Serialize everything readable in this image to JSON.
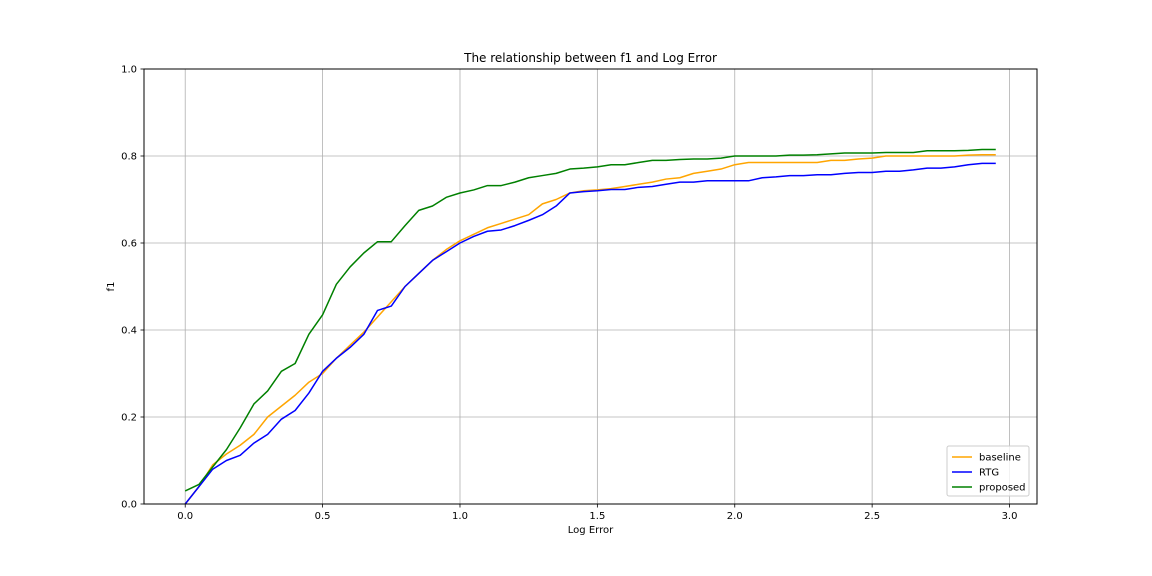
{
  "chart_data": {
    "type": "line",
    "title": "The relationship between f1 and Log Error",
    "xlabel": "Log Error",
    "ylabel": "f1",
    "xlim": [
      -0.15,
      3.1
    ],
    "ylim": [
      0.0,
      1.0
    ],
    "xticks": [
      0.0,
      0.5,
      1.0,
      1.5,
      2.0,
      2.5,
      3.0
    ],
    "xtick_labels": [
      "0.0",
      "0.5",
      "1.0",
      "1.5",
      "2.0",
      "2.5",
      "3.0"
    ],
    "yticks": [
      0.0,
      0.2,
      0.4,
      0.6,
      0.8,
      1.0
    ],
    "ytick_labels": [
      "0.0",
      "0.2",
      "0.4",
      "0.6",
      "0.8",
      "1.0"
    ],
    "grid": true,
    "legend_position": "lower-right",
    "x": [
      0.0,
      0.05,
      0.1,
      0.15,
      0.2,
      0.25,
      0.3,
      0.35,
      0.4,
      0.45,
      0.5,
      0.55,
      0.6,
      0.65,
      0.7,
      0.75,
      0.8,
      0.85,
      0.9,
      0.95,
      1.0,
      1.05,
      1.1,
      1.15,
      1.2,
      1.25,
      1.3,
      1.35,
      1.4,
      1.45,
      1.5,
      1.55,
      1.6,
      1.65,
      1.7,
      1.75,
      1.8,
      1.85,
      1.9,
      1.95,
      2.0,
      2.05,
      2.1,
      2.15,
      2.2,
      2.25,
      2.3,
      2.35,
      2.4,
      2.45,
      2.5,
      2.55,
      2.6,
      2.65,
      2.7,
      2.75,
      2.8,
      2.85,
      2.9,
      2.95
    ],
    "series": [
      {
        "name": "baseline",
        "color": "#ffa500",
        "values": [
          0.0,
          0.04,
          0.09,
          0.115,
          0.135,
          0.16,
          0.2,
          0.225,
          0.25,
          0.28,
          0.3,
          0.335,
          0.365,
          0.395,
          0.43,
          0.465,
          0.5,
          0.53,
          0.56,
          0.585,
          0.605,
          0.62,
          0.635,
          0.645,
          0.655,
          0.665,
          0.69,
          0.7,
          0.715,
          0.72,
          0.722,
          0.725,
          0.73,
          0.735,
          0.74,
          0.747,
          0.75,
          0.76,
          0.765,
          0.77,
          0.78,
          0.785,
          0.785,
          0.785,
          0.785,
          0.785,
          0.785,
          0.79,
          0.79,
          0.793,
          0.795,
          0.8,
          0.8,
          0.8,
          0.8,
          0.8,
          0.8,
          0.802,
          0.803,
          0.803
        ]
      },
      {
        "name": "RTG",
        "color": "#0000ff",
        "values": [
          0.0,
          0.04,
          0.08,
          0.1,
          0.112,
          0.14,
          0.16,
          0.195,
          0.215,
          0.255,
          0.305,
          0.335,
          0.36,
          0.39,
          0.445,
          0.455,
          0.5,
          0.53,
          0.56,
          0.58,
          0.6,
          0.615,
          0.627,
          0.63,
          0.64,
          0.652,
          0.665,
          0.685,
          0.715,
          0.718,
          0.72,
          0.723,
          0.723,
          0.728,
          0.73,
          0.735,
          0.74,
          0.74,
          0.743,
          0.743,
          0.743,
          0.743,
          0.75,
          0.752,
          0.755,
          0.755,
          0.757,
          0.757,
          0.76,
          0.762,
          0.762,
          0.765,
          0.765,
          0.768,
          0.772,
          0.772,
          0.775,
          0.78,
          0.783,
          0.783
        ]
      },
      {
        "name": "proposed",
        "color": "#008000",
        "values": [
          0.03,
          0.045,
          0.085,
          0.125,
          0.175,
          0.23,
          0.26,
          0.305,
          0.323,
          0.39,
          0.435,
          0.505,
          0.545,
          0.577,
          0.603,
          0.603,
          0.64,
          0.675,
          0.685,
          0.705,
          0.715,
          0.722,
          0.732,
          0.732,
          0.74,
          0.75,
          0.755,
          0.76,
          0.77,
          0.772,
          0.775,
          0.78,
          0.78,
          0.785,
          0.79,
          0.79,
          0.792,
          0.793,
          0.793,
          0.795,
          0.8,
          0.8,
          0.8,
          0.8,
          0.802,
          0.802,
          0.803,
          0.805,
          0.807,
          0.807,
          0.807,
          0.808,
          0.808,
          0.808,
          0.812,
          0.812,
          0.812,
          0.813,
          0.815,
          0.815
        ]
      }
    ]
  }
}
